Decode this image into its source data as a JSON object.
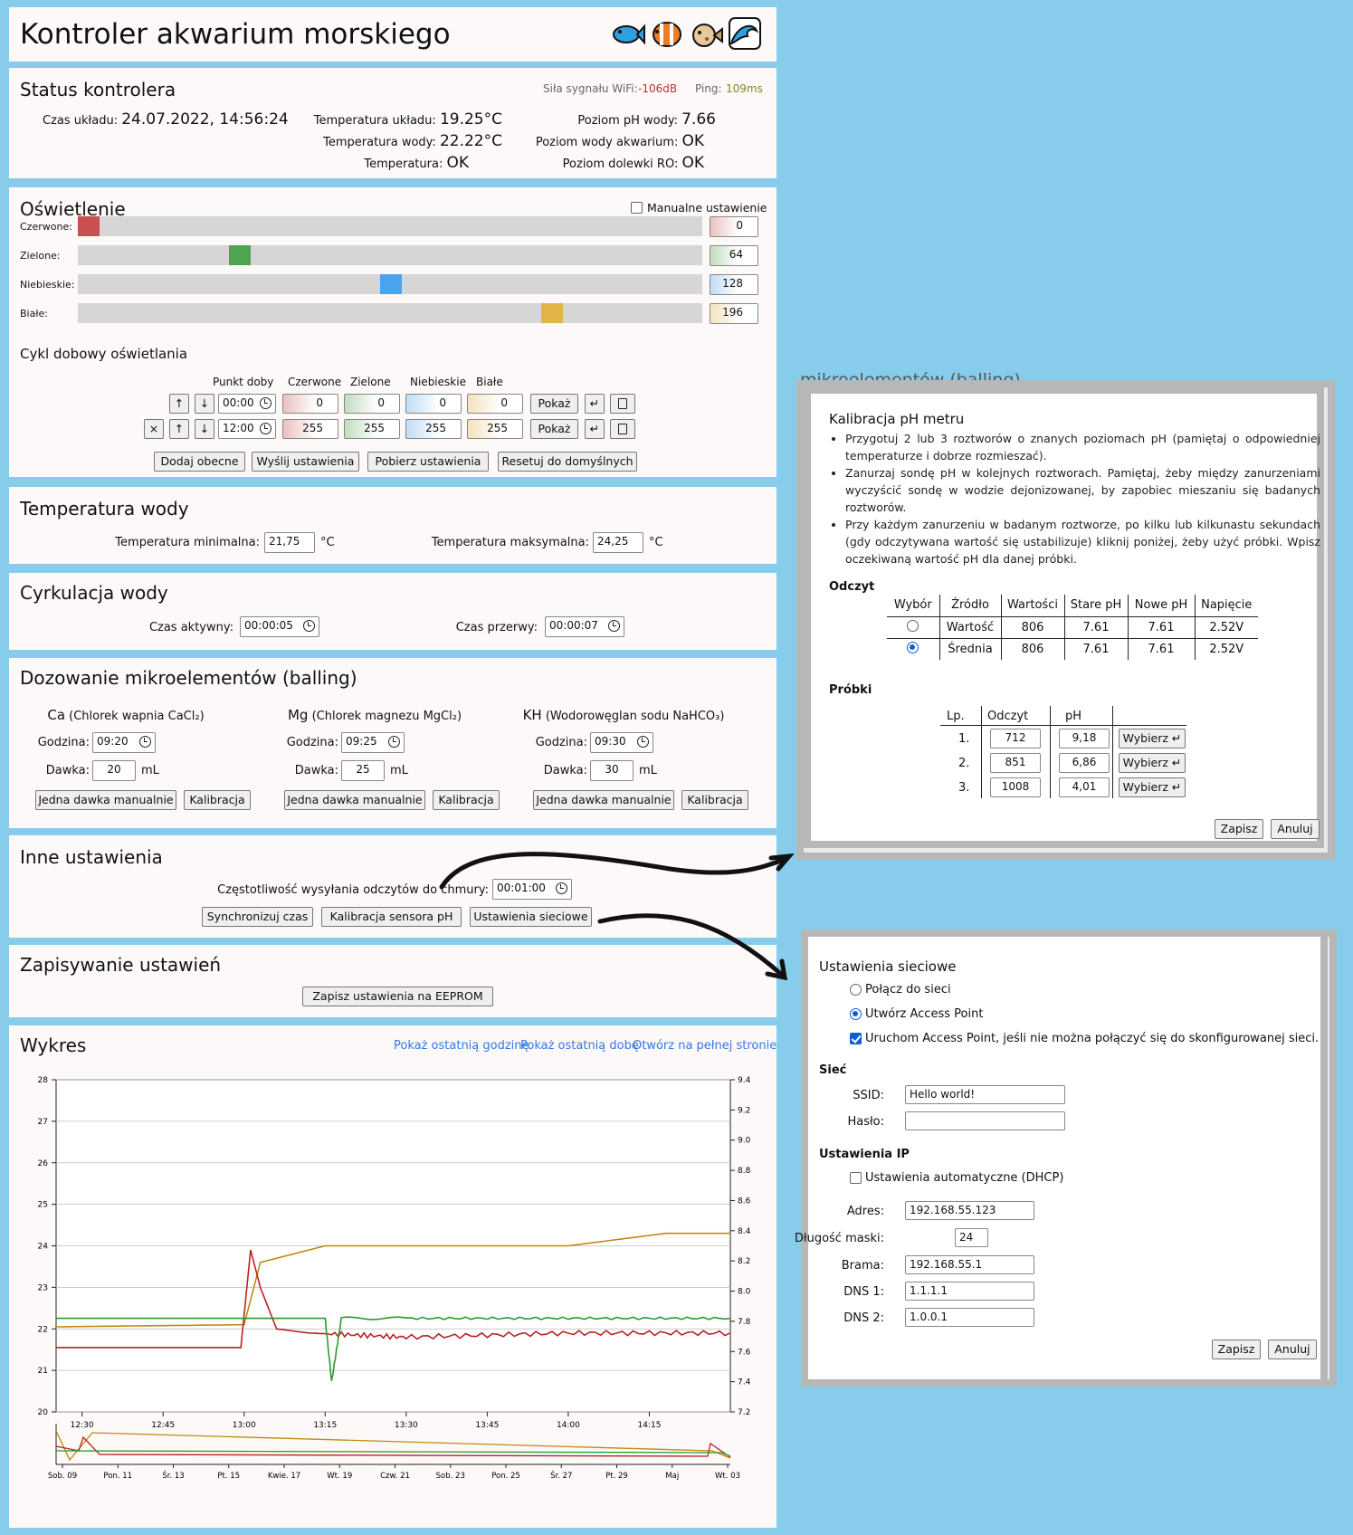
{
  "header": {
    "title": "Kontroler akwarium morskiego",
    "icons": [
      "fish-icon",
      "clownfish-icon",
      "pufferfish-icon",
      "wave-icon"
    ]
  },
  "status": {
    "title": "Status kontrolera",
    "wifi_label": "Siła sygnału WiFi:",
    "wifi_value": "-106dB",
    "ping_label": "Ping:",
    "ping_value": "109ms",
    "time_label": "Czas układu:",
    "time_value": "24.07.2022, 14:56:24",
    "sys_temp_label": "Temperatura układu:",
    "sys_temp_value": "19.25°C",
    "water_temp_label": "Temperatura wody:",
    "water_temp_value": "22.22°C",
    "temp_label": "Temperatura:",
    "temp_value": "OK",
    "ph_label": "Poziom pH wody:",
    "ph_value": "7.66",
    "water_level_label": "Poziom wody akwarium:",
    "water_level_value": "OK",
    "ro_label": "Poziom dolewki RO:",
    "ro_value": "OK"
  },
  "lighting": {
    "title": "Oświetlenie",
    "manual_label": "Manualne ustawienie",
    "channels": [
      {
        "label": "Czerwone:",
        "value": "0",
        "level": 0,
        "color": "#c8504f"
      },
      {
        "label": "Zielone:",
        "value": "64",
        "level": 64,
        "color": "#4ea450"
      },
      {
        "label": "Niebieskie:",
        "value": "128",
        "level": 128,
        "color": "#4aa3f0"
      },
      {
        "label": "Białe:",
        "value": "196",
        "level": 196,
        "color": "#e2b54a"
      }
    ],
    "cycle_title": "Cykl dobowy oświetlania",
    "cols": [
      "Punkt doby",
      "Czerwone",
      "Zielone",
      "Niebieskie",
      "Białe"
    ],
    "rows": [
      {
        "time": "00:00",
        "r": "0",
        "g": "0",
        "b": "0",
        "w": "0"
      },
      {
        "time": "12:00",
        "r": "255",
        "g": "255",
        "b": "255",
        "w": "255"
      }
    ],
    "show": "Pokaż",
    "up": "↑",
    "down": "↓",
    "remove": "×",
    "enter": "↵",
    "buttons": [
      "Dodaj obecne",
      "Wyślij ustawienia",
      "Pobierz ustawienia",
      "Resetuj do domyślnych"
    ]
  },
  "temperature": {
    "title": "Temperatura wody",
    "min_label": "Temperatura minimalna:",
    "min_value": "21,75",
    "max_label": "Temperatura maksymalna:",
    "max_value": "24,25",
    "unit": "°C"
  },
  "circulation": {
    "title": "Cyrkulacja wody",
    "active_label": "Czas aktywny:",
    "active_value": "00:00:05",
    "pause_label": "Czas przerwy:",
    "pause_value": "00:00:07"
  },
  "dosing": {
    "title": "Dozowanie mikroelementów (balling)",
    "hour_label": "Godzina:",
    "dose_label": "Dawka:",
    "unit": "mL",
    "manual": "Jedna dawka manualnie",
    "calib": "Kalibracja",
    "items": [
      {
        "sym": "Ca",
        "name": "(Chlorek wapnia CaCl₂)",
        "hour": "09:20",
        "dose": "20"
      },
      {
        "sym": "Mg",
        "name": "(Chlorek magnezu MgCl₂)",
        "hour": "09:25",
        "dose": "25"
      },
      {
        "sym": "KH",
        "name": "(Wodorowęglan sodu NaHCO₃)",
        "hour": "09:30",
        "dose": "30"
      }
    ]
  },
  "other": {
    "title": "Inne ustawienia",
    "freq_label": "Częstotliwość wysyłania odczytów do chmury:",
    "freq_value": "00:01:00",
    "buttons": [
      "Synchronizuj czas",
      "Kalibracja sensora pH",
      "Ustawienia sieciowe"
    ]
  },
  "saving": {
    "title": "Zapisywanie ustawień",
    "button": "Zapisz ustawienia na EEPROM"
  },
  "chart_panel": {
    "title": "Wykres",
    "links": [
      "Pokaż ostatnią godzinę",
      "Pokaż ostatnią dobę",
      "Otwórz na pełnej stronie"
    ]
  },
  "chart_data": {
    "type": "line",
    "x_ticks": [
      "12:30",
      "12:45",
      "13:00",
      "13:15",
      "13:30",
      "13:45",
      "14:00",
      "14:15"
    ],
    "y_left": {
      "ylim": [
        20,
        28
      ],
      "ticks": [
        "20",
        "21",
        "22",
        "23",
        "24",
        "25",
        "26",
        "27",
        "28"
      ]
    },
    "y_right": {
      "ylim": [
        7.2,
        9.4
      ],
      "ticks": [
        "7.2",
        "7.4",
        "7.6",
        "7.8",
        "8.0",
        "8.2",
        "8.4",
        "8.6",
        "8.8",
        "9.0",
        "9.2",
        "9.4"
      ]
    },
    "series": [
      {
        "color": "#c08a12",
        "axis": "left",
        "x": [
          12.42,
          13.0,
          13.05,
          13.25,
          13.5,
          13.75,
          14.0,
          14.3,
          14.5
        ],
        "y": [
          22.05,
          22.1,
          23.6,
          24.0,
          24.0,
          24.0,
          24.0,
          24.3,
          24.3
        ]
      },
      {
        "color": "#bb2222",
        "axis": "left",
        "x": [
          12.42,
          12.99,
          13.02,
          13.05,
          13.1,
          13.2,
          13.5,
          14.0,
          14.5
        ],
        "y": [
          21.55,
          21.55,
          23.9,
          23.0,
          22.0,
          21.9,
          21.8,
          21.9,
          21.9
        ]
      },
      {
        "color": "#2a9a2a",
        "axis": "right",
        "x": [
          12.42,
          13.0,
          13.25,
          13.27,
          13.3,
          13.5,
          14.0,
          14.5
        ],
        "y": [
          7.82,
          7.82,
          7.82,
          7.4,
          7.82,
          7.82,
          7.82,
          7.82
        ]
      }
    ],
    "overview_ticks": [
      "Sob. 09",
      "Pon. 11",
      "Śr. 13",
      "Pt. 15",
      "Kwie. 17",
      "Wt. 19",
      "Czw. 21",
      "Sob. 23",
      "Pon. 25",
      "Śr. 27",
      "Pt. 29",
      "Maj",
      "Wt. 03"
    ]
  },
  "ph_dialog": {
    "behind_title": "mikroelementów (balling)",
    "title": "Kalibracja pH metru",
    "instructions": [
      "Przygotuj 2 lub 3 roztworów o znanych poziomach pH (pamiętaj o odpowiedniej temperaturze i dobrze rozmieszać).",
      "Zanurzaj sondę pH w kolejnych roztworach. Pamiętaj, żeby między zanurzeniami wyczyścić sondę w wodzie dejonizowanej, by zapobiec mieszaniu się badanych roztworów.",
      "Przy każdym zanurzeniu w badanym roztworze, po kilku lub kilkunastu sekundach (gdy odczytywana wartość się ustabilizuje) kliknij poniżej, żeby użyć próbki. Wpisz oczekiwaną wartość pH dla danej próbki."
    ],
    "reading_title": "Odczyt",
    "reading_cols": [
      "Wybór",
      "Źródło",
      "Wartości",
      "Stare pH",
      "Nowe pH",
      "Napięcie"
    ],
    "reading_rows": [
      {
        "src": "Wartość",
        "val": "806",
        "old": "7.61",
        "new": "7.61",
        "volt": "2.52V",
        "selected": false
      },
      {
        "src": "Średnia",
        "val": "806",
        "old": "7.61",
        "new": "7.61",
        "volt": "2.52V",
        "selected": true
      }
    ],
    "samples_title": "Próbki",
    "sample_cols": [
      "Lp.",
      "Odczyt",
      "pH"
    ],
    "samples": [
      {
        "n": "1.",
        "read": "712",
        "ph": "9,18"
      },
      {
        "n": "2.",
        "read": "851",
        "ph": "6,86"
      },
      {
        "n": "3.",
        "read": "1008",
        "ph": "4,01"
      }
    ],
    "choose": "Wybierz ↵",
    "save": "Zapisz",
    "cancel": "Anuluj"
  },
  "net_dialog": {
    "title": "Ustawienia sieciowe",
    "opt_connect": "Połącz do sieci",
    "opt_ap": "Utwórz Access Point",
    "opt_fallback": "Uruchom Access Point, jeśli nie można połączyć się do skonfigurowanej sieci.",
    "net_title": "Sieć",
    "ssid_label": "SSID:",
    "ssid_value": "Hello world!",
    "pass_label": "Hasło:",
    "pass_value": "",
    "ip_title": "Ustawienia IP",
    "dhcp_label": "Ustawienia automatyczne (DHCP)",
    "addr_label": "Adres:",
    "addr_value": "192.168.55.123",
    "mask_label": "Długość maski:",
    "mask_value": "24",
    "gw_label": "Brama:",
    "gw_value": "192.168.55.1",
    "dns1_label": "DNS 1:",
    "dns1_value": "1.1.1.1",
    "dns2_label": "DNS 2:",
    "dns2_value": "1.0.0.1",
    "save": "Zapisz",
    "cancel": "Anuluj"
  },
  "colors": {
    "background": "#87cdeb",
    "panel": "#fcf9f8",
    "link": "#3578e5",
    "wifi": "#c03030",
    "ping": "#7a8a20"
  }
}
